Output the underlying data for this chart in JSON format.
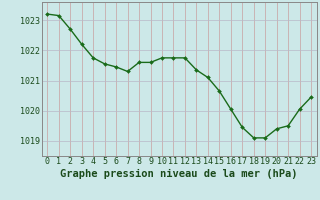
{
  "x": [
    0,
    1,
    2,
    3,
    4,
    5,
    6,
    7,
    8,
    9,
    10,
    11,
    12,
    13,
    14,
    15,
    16,
    17,
    18,
    19,
    20,
    21,
    22,
    23
  ],
  "y": [
    1023.2,
    1023.15,
    1022.7,
    1022.2,
    1021.75,
    1021.55,
    1021.45,
    1021.3,
    1021.6,
    1021.6,
    1021.75,
    1021.75,
    1021.75,
    1021.35,
    1021.1,
    1020.65,
    1020.05,
    1019.45,
    1019.1,
    1019.1,
    1019.4,
    1019.5,
    1020.05,
    1020.45
  ],
  "line_color": "#1a6b1a",
  "marker": "D",
  "marker_size": 2.0,
  "bg_color": "#cce8e8",
  "grid_color": "#b0c8c8",
  "xlabel": "Graphe pression niveau de la mer (hPa)",
  "xlabel_color": "#1a4a1a",
  "tick_label_color": "#1a4a1a",
  "axis_color": "#888888",
  "ylim": [
    1018.5,
    1023.6
  ],
  "yticks": [
    1019,
    1020,
    1021,
    1022,
    1023
  ],
  "xticks": [
    0,
    1,
    2,
    3,
    4,
    5,
    6,
    7,
    8,
    9,
    10,
    11,
    12,
    13,
    14,
    15,
    16,
    17,
    18,
    19,
    20,
    21,
    22,
    23
  ],
  "line_width": 1.0,
  "xlabel_fontsize": 7.5,
  "tick_fontsize": 6.0
}
